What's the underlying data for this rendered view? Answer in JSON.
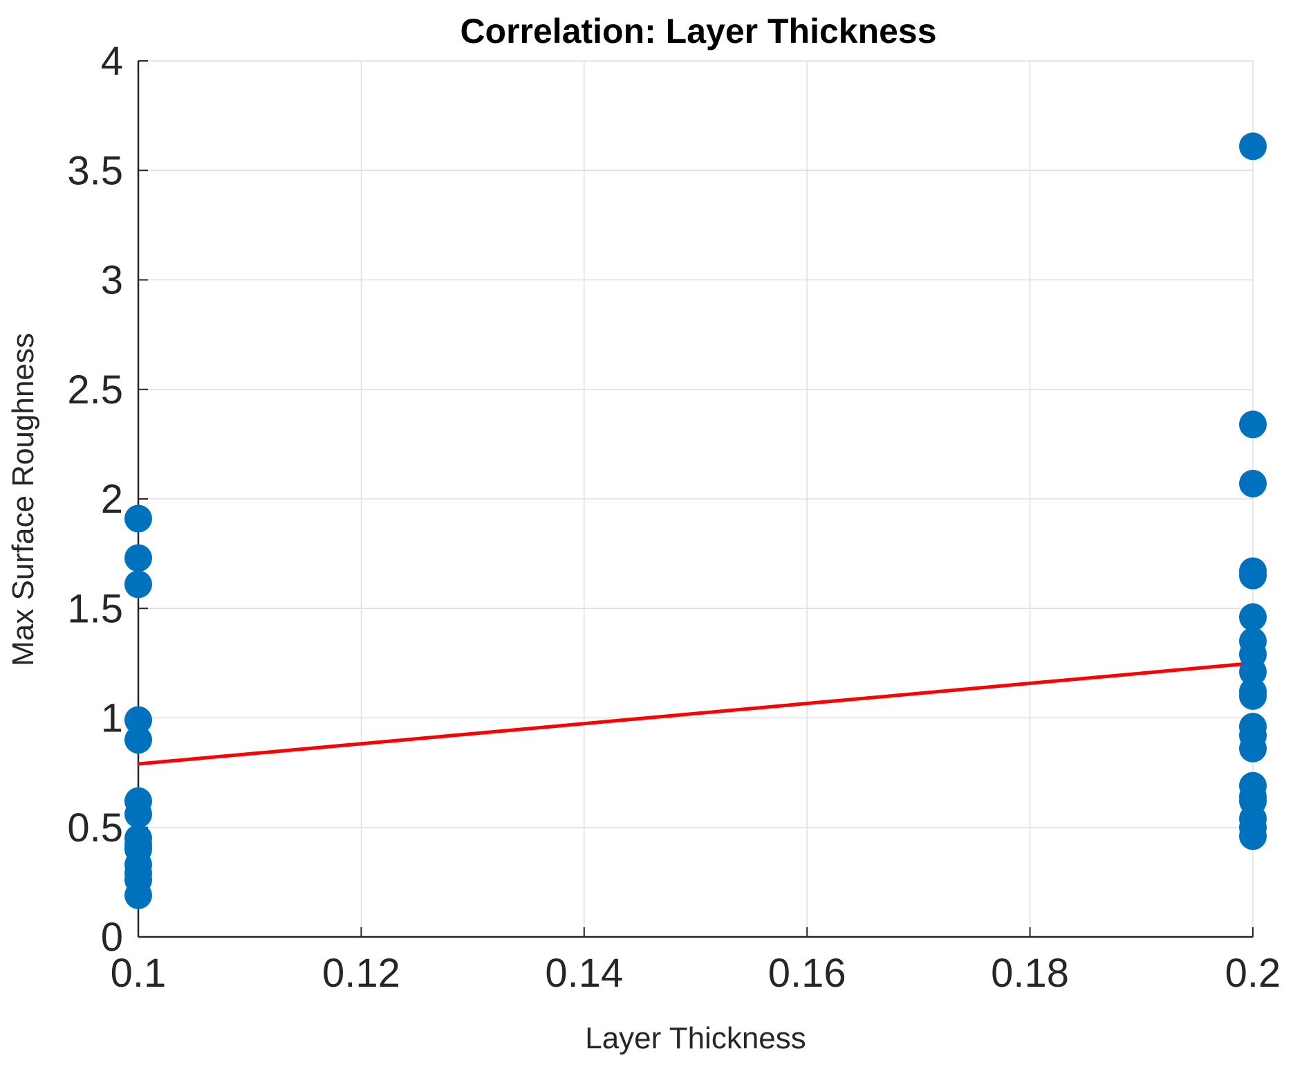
{
  "chart_data": {
    "type": "scatter",
    "title": "Correlation: Layer Thickness",
    "xlabel": "Layer Thickness",
    "ylabel": "Max Surface Roughness",
    "xlim": [
      0.1,
      0.2
    ],
    "ylim": [
      0,
      4
    ],
    "xticks": [
      "0.1",
      "0.12",
      "0.14",
      "0.16",
      "0.18",
      "0.2"
    ],
    "yticks": [
      "0",
      "0.5",
      "1",
      "1.5",
      "2",
      "2.5",
      "3",
      "3.5",
      "4"
    ],
    "grid": true,
    "legend": "none",
    "series": [
      {
        "marker_color": "#0072BD",
        "x": [
          0.1,
          0.1,
          0.1,
          0.1,
          0.1,
          0.1,
          0.1,
          0.1,
          0.1,
          0.1,
          0.1,
          0.1,
          0.1,
          0.1,
          0.2,
          0.2,
          0.2,
          0.2,
          0.2,
          0.2,
          0.2,
          0.2,
          0.2,
          0.2,
          0.2,
          0.2,
          0.2,
          0.2,
          0.2,
          0.2,
          0.2,
          0.2,
          0.2,
          0.2
        ],
        "y": [
          1.91,
          1.73,
          1.61,
          0.99,
          0.9,
          0.62,
          0.56,
          0.45,
          0.4,
          0.33,
          0.29,
          0.19,
          0.26,
          0.42,
          3.61,
          2.34,
          2.07,
          1.67,
          1.65,
          1.46,
          1.35,
          1.29,
          1.21,
          1.12,
          1.1,
          0.96,
          0.92,
          0.86,
          0.69,
          0.64,
          0.54,
          0.5,
          0.46,
          0.62
        ]
      }
    ],
    "fit_line": {
      "color": "#FF0000",
      "x": [
        0.1,
        0.2
      ],
      "y": [
        0.79,
        1.25
      ]
    }
  }
}
